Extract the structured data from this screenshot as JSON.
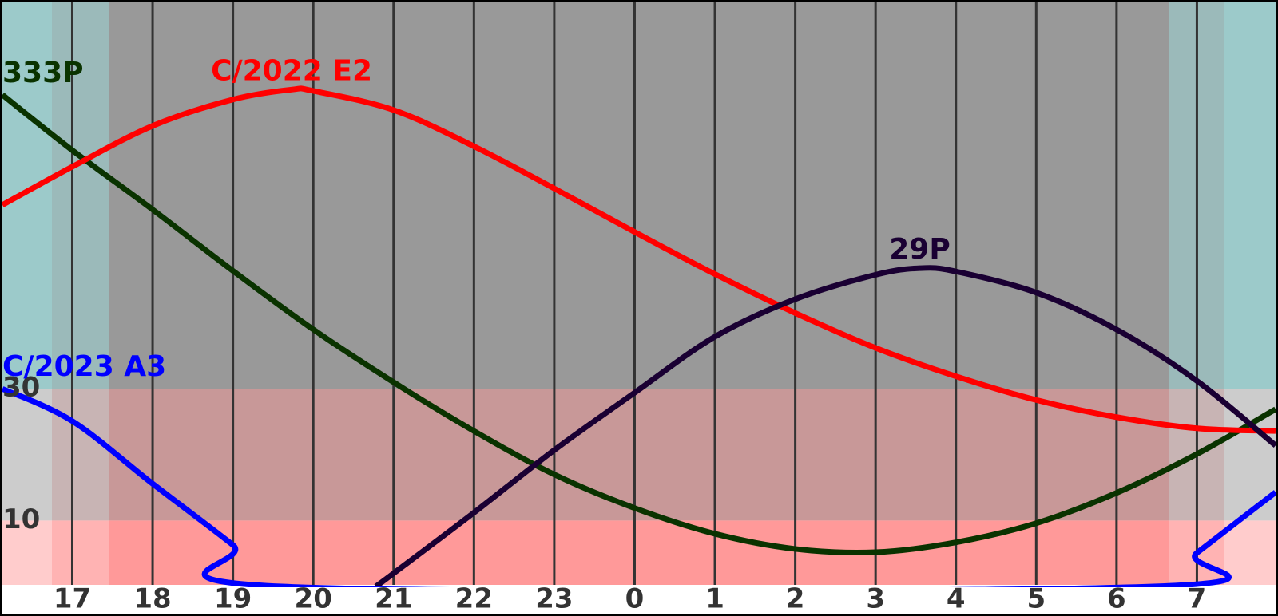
{
  "chart_data": {
    "type": "line",
    "xlim": [
      16.13,
      31.98
    ],
    "xticks": [
      17,
      18,
      19,
      20,
      21,
      22,
      23,
      {
        "value": 24,
        "label": "0"
      },
      {
        "value": 25,
        "label": "1"
      },
      {
        "value": 26,
        "label": "2"
      },
      {
        "value": 27,
        "label": "3"
      },
      {
        "value": 28,
        "label": "4"
      },
      {
        "value": 29,
        "label": "5"
      },
      {
        "value": 30,
        "label": "6"
      },
      {
        "value": 31,
        "label": "7"
      }
    ],
    "ylim": [
      0,
      89
    ],
    "yticks": [
      10,
      30
    ],
    "series": [
      {
        "name": "333P",
        "color": "#0a3300",
        "x": [
          16.13,
          17,
          18,
          19,
          20,
          21,
          22,
          23,
          24,
          25,
          26,
          27,
          28,
          29,
          30,
          31,
          31.98
        ],
        "values": [
          74.6,
          66.2,
          57.2,
          47.9,
          39.0,
          31.0,
          23.6,
          17.0,
          11.9,
          8.0,
          5.7,
          5.2,
          6.7,
          9.6,
          14.2,
          20.1,
          26.9
        ]
      },
      {
        "name": "C/2022 E2",
        "color": "#ff0000",
        "x": [
          16.13,
          17,
          18,
          19,
          19.73,
          20,
          21,
          22,
          23,
          24,
          25,
          26,
          27,
          28,
          29,
          30,
          31,
          31.98
        ],
        "values": [
          57.9,
          63.7,
          69.9,
          73.9,
          75.4,
          75.2,
          72.3,
          66.8,
          60.4,
          53.8,
          47.4,
          41.5,
          36.2,
          31.9,
          28.3,
          25.7,
          24.0,
          23.6
        ]
      },
      {
        "name": "29P",
        "color": "#1a0033",
        "x": [
          20.78,
          21,
          22,
          23,
          24,
          25,
          26,
          27,
          27.55,
          28,
          29,
          30,
          31,
          31.98
        ],
        "values": [
          0,
          2.0,
          11.2,
          20.7,
          29.4,
          37.9,
          43.6,
          47.3,
          48.3,
          47.8,
          44.6,
          39.0,
          31.2,
          21.4
        ]
      },
      {
        "name": "C/2023 A3",
        "color": "#0000ff",
        "x": [
          16.13,
          17,
          18,
          19,
          19.61,
          30.46,
          31,
          31.98
        ],
        "values": [
          30,
          25.1,
          15.6,
          6.3,
          0,
          0,
          5.1,
          14.3
        ]
      }
    ]
  }
}
